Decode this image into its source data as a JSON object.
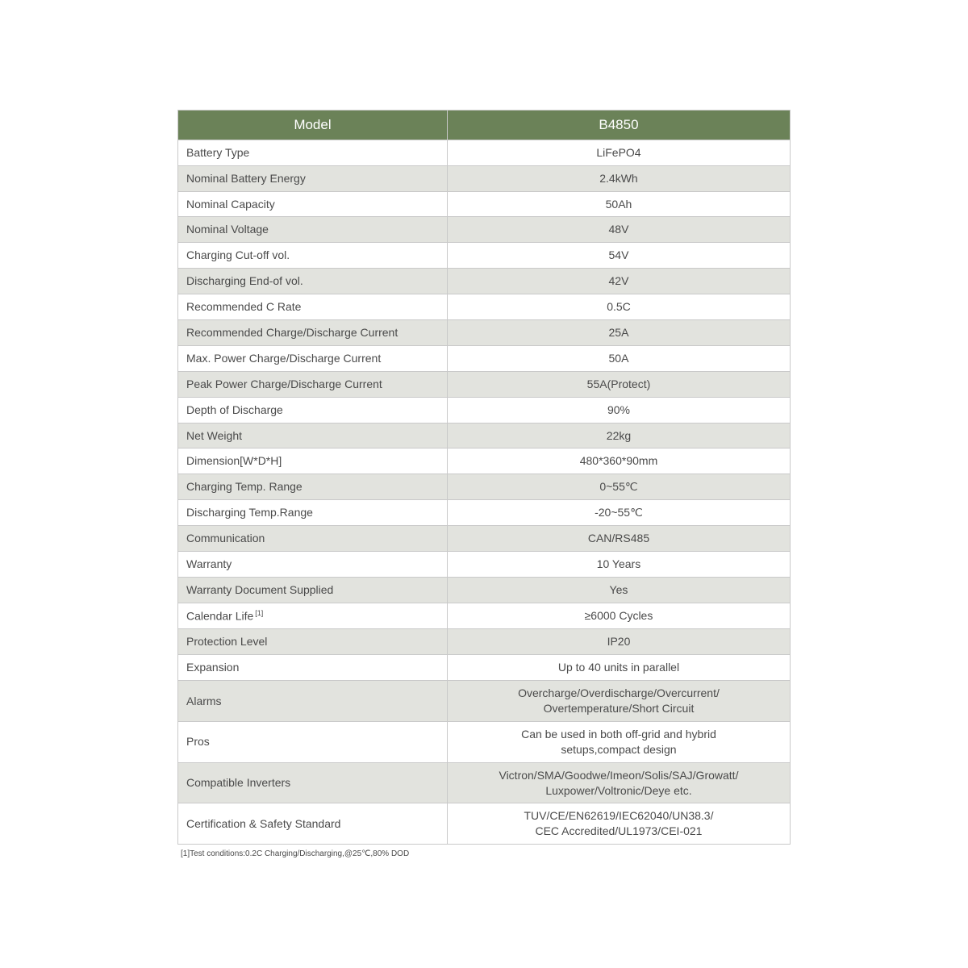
{
  "table": {
    "header_bg": "#6b8258",
    "header_fg": "#ffffff",
    "row_shade_bg": "#e2e3de",
    "row_plain_bg": "#ffffff",
    "border_color": "#c9c9c9",
    "text_color": "#4a4a4a",
    "columns": [
      "Model",
      "B4850"
    ],
    "rows": [
      {
        "label": "Battery Type",
        "value": "LiFePO4",
        "shade": false
      },
      {
        "label": "Nominal Battery Energy",
        "value": "2.4kWh",
        "shade": true
      },
      {
        "label": "Nominal Capacity",
        "value": "50Ah",
        "shade": false
      },
      {
        "label": "Nominal Voltage",
        "value": "48V",
        "shade": true
      },
      {
        "label": "Charging Cut-off vol.",
        "value": "54V",
        "shade": false
      },
      {
        "label": "Discharging End-of vol.",
        "value": "42V",
        "shade": true
      },
      {
        "label": "Recommended C Rate",
        "value": "0.5C",
        "shade": false
      },
      {
        "label": "Recommended Charge/Discharge Current",
        "value": "25A",
        "shade": true
      },
      {
        "label": "Max. Power Charge/Discharge Current",
        "value": "50A",
        "shade": false
      },
      {
        "label": "Peak Power Charge/Discharge Current",
        "value": "55A(Protect)",
        "shade": true
      },
      {
        "label": "Depth of Discharge",
        "value": "90%",
        "shade": false
      },
      {
        "label": "Net Weight",
        "value": "22kg",
        "shade": true
      },
      {
        "label": "Dimension[W*D*H]",
        "value": "480*360*90mm",
        "shade": false
      },
      {
        "label": "Charging Temp. Range",
        "value": "0~55℃",
        "shade": true
      },
      {
        "label": "Discharging Temp.Range",
        "value": "-20~55℃",
        "shade": false
      },
      {
        "label": "Communication",
        "value": "CAN/RS485",
        "shade": true
      },
      {
        "label": "Warranty",
        "value": "10 Years",
        "shade": false
      },
      {
        "label": "Warranty Document Supplied",
        "value": "Yes",
        "shade": true
      },
      {
        "label": "Calendar Life",
        "sup": "[1]",
        "value": "≥6000 Cycles",
        "shade": false
      },
      {
        "label": "Protection Level",
        "value": "IP20",
        "shade": true
      },
      {
        "label": "Expansion",
        "value": "Up to 40 units in parallel",
        "shade": false
      },
      {
        "label": "Alarms",
        "value": "Overcharge/Overdischarge/Overcurrent/\nOvertemperature/Short Circuit",
        "shade": true
      },
      {
        "label": "Pros",
        "value": "Can be used in both off-grid and hybrid\nsetups,compact design",
        "shade": false
      },
      {
        "label": "Compatible Inverters",
        "value": "Victron/SMA/Goodwe/Imeon/Solis/SAJ/Growatt/\nLuxpower/Voltronic/Deye etc.",
        "shade": true
      },
      {
        "label": "Certification & Safety Standard",
        "value": "TUV/CE/EN62619/IEC62040/UN38.3/\nCEC Accredited/UL1973/CEI-021",
        "shade": false
      }
    ]
  },
  "footnote": "[1]Test conditions:0.2C Charging/Discharging,@25℃,80% DOD"
}
